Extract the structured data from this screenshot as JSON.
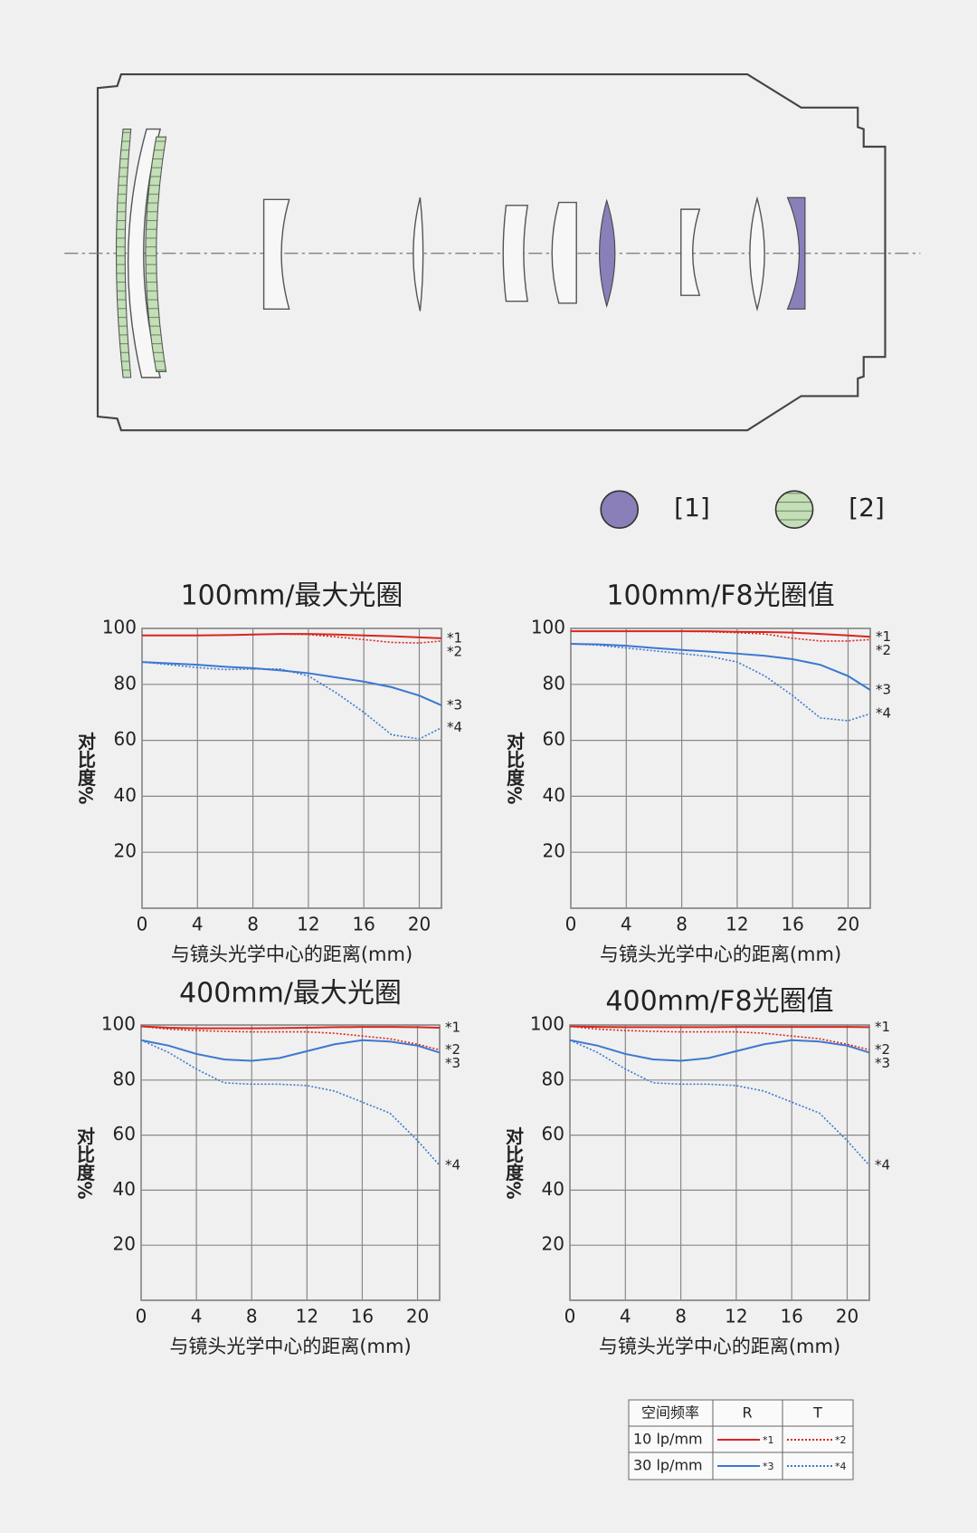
{
  "lens_legend": [
    "[1]",
    "[2]"
  ],
  "chart_data": [
    {
      "type": "line",
      "title": "100mm/最大光圈",
      "x_label": "与镜头光学中心的距离(mm)",
      "y_label": "对比度%",
      "x": [
        0,
        2,
        4,
        6,
        8,
        10,
        12,
        14,
        16,
        18,
        20,
        21.6
      ],
      "xlim": [
        0,
        21.6
      ],
      "ylim": [
        0,
        100
      ],
      "xticks": [
        0,
        4,
        8,
        12,
        16,
        20
      ],
      "yticks": [
        20,
        40,
        60,
        80,
        100
      ],
      "grid": true,
      "series": [
        {
          "name": "*1",
          "color": "#d8261f",
          "style": "solid",
          "values": [
            97.5,
            97.5,
            97.5,
            97.6,
            97.8,
            98,
            98,
            97.8,
            97.5,
            97.2,
            96.8,
            96.5
          ]
        },
        {
          "name": "*2",
          "color": "#d8261f",
          "style": "dotted",
          "values": [
            97.5,
            97.5,
            97.5,
            97.6,
            97.8,
            98,
            97.8,
            97,
            96,
            95,
            94.8,
            95.5
          ]
        },
        {
          "name": "*3",
          "color": "#3b78d0",
          "style": "solid",
          "values": [
            88,
            87.5,
            87,
            86.3,
            85.8,
            85,
            84,
            82.5,
            81,
            79,
            76,
            72.5
          ]
        },
        {
          "name": "*4",
          "color": "#3b78d0",
          "style": "dotted",
          "values": [
            88,
            87,
            86,
            85.3,
            85.5,
            85.5,
            83,
            77,
            70,
            62,
            60.5,
            64.5
          ]
        }
      ]
    },
    {
      "type": "line",
      "title": "100mm/F8光圈值",
      "x_label": "与镜头光学中心的距离(mm)",
      "y_label": "对比度%",
      "x": [
        0,
        2,
        4,
        6,
        8,
        10,
        12,
        14,
        16,
        18,
        20,
        21.6
      ],
      "xlim": [
        0,
        21.6
      ],
      "ylim": [
        0,
        100
      ],
      "xticks": [
        0,
        4,
        8,
        12,
        16,
        20
      ],
      "yticks": [
        20,
        40,
        60,
        80,
        100
      ],
      "grid": true,
      "series": [
        {
          "name": "*1",
          "color": "#d8261f",
          "style": "solid",
          "values": [
            99,
            99,
            99,
            99,
            99,
            99,
            98.8,
            98.7,
            98.5,
            98,
            97.5,
            97
          ]
        },
        {
          "name": "*2",
          "color": "#d8261f",
          "style": "dotted",
          "values": [
            99,
            99,
            99,
            99,
            99,
            98.8,
            98.5,
            98,
            96.5,
            95.5,
            95.5,
            96
          ]
        },
        {
          "name": "*3",
          "color": "#3b78d0",
          "style": "solid",
          "values": [
            94.5,
            94.3,
            93.8,
            93,
            92.3,
            91.7,
            91,
            90.2,
            89,
            87,
            83,
            78
          ]
        },
        {
          "name": "*4",
          "color": "#3b78d0",
          "style": "dotted",
          "values": [
            94.5,
            94,
            93,
            92,
            91,
            90,
            88,
            83,
            76,
            68,
            67,
            69.5
          ]
        }
      ]
    },
    {
      "type": "line",
      "title": "400mm/最大光圈",
      "x_label": "与镜头光学中心的距离(mm)",
      "y_label": "对比度%",
      "x": [
        0,
        2,
        4,
        6,
        8,
        10,
        12,
        14,
        16,
        18,
        20,
        21.6
      ],
      "xlim": [
        0,
        21.6
      ],
      "ylim": [
        0,
        100
      ],
      "xticks": [
        0,
        4,
        8,
        12,
        16,
        20
      ],
      "yticks": [
        20,
        40,
        60,
        80,
        100
      ],
      "grid": true,
      "series": [
        {
          "name": "*1",
          "color": "#d8261f",
          "style": "solid",
          "values": [
            99.5,
            99,
            98.8,
            98.8,
            98.8,
            98.9,
            99,
            99.2,
            99.3,
            99.3,
            99.2,
            99
          ]
        },
        {
          "name": "*2",
          "color": "#d8261f",
          "style": "dotted",
          "values": [
            99.5,
            98.5,
            98,
            97.7,
            97.5,
            97.5,
            97.5,
            97,
            96,
            95,
            93,
            91
          ]
        },
        {
          "name": "*3",
          "color": "#3b78d0",
          "style": "solid",
          "values": [
            94.5,
            92.5,
            89.5,
            87.5,
            87,
            88,
            90.5,
            93,
            94.5,
            94,
            92.5,
            90
          ]
        },
        {
          "name": "*4",
          "color": "#3b78d0",
          "style": "dotted",
          "values": [
            94.5,
            90,
            84,
            79,
            78.5,
            78.5,
            78,
            76,
            72,
            68,
            58,
            49
          ]
        }
      ]
    },
    {
      "type": "line",
      "title": "400mm/F8光圈值",
      "x_label": "与镜头光学中心的距离(mm)",
      "y_label": "对比度%",
      "x": [
        0,
        2,
        4,
        6,
        8,
        10,
        12,
        14,
        16,
        18,
        20,
        21.6
      ],
      "xlim": [
        0,
        21.6
      ],
      "ylim": [
        0,
        100
      ],
      "xticks": [
        0,
        4,
        8,
        12,
        16,
        20
      ],
      "yticks": [
        20,
        40,
        60,
        80,
        100
      ],
      "grid": true,
      "series": [
        {
          "name": "*1",
          "color": "#d8261f",
          "style": "solid",
          "values": [
            99.5,
            99.3,
            99.2,
            99.2,
            99.2,
            99.2,
            99.3,
            99.3,
            99.3,
            99.3,
            99.3,
            99.2
          ]
        },
        {
          "name": "*2",
          "color": "#d8261f",
          "style": "dotted",
          "values": [
            99.5,
            98.5,
            98,
            97.7,
            97.5,
            97.5,
            97.5,
            97,
            96,
            95,
            93,
            91
          ]
        },
        {
          "name": "*3",
          "color": "#3b78d0",
          "style": "solid",
          "values": [
            94.5,
            92.5,
            89.5,
            87.5,
            87,
            88,
            90.5,
            93,
            94.5,
            94,
            92.5,
            90
          ]
        },
        {
          "name": "*4",
          "color": "#3b78d0",
          "style": "dotted",
          "values": [
            94.5,
            90,
            84,
            79,
            78.5,
            78.5,
            78,
            76,
            72,
            68,
            58,
            49
          ]
        }
      ]
    }
  ],
  "legend_table": {
    "header": [
      "空间频率",
      "R",
      "T"
    ],
    "rows": [
      [
        "10 lp/mm",
        "*1",
        "*2"
      ],
      [
        "30 lp/mm",
        "*3",
        "*4"
      ]
    ]
  }
}
